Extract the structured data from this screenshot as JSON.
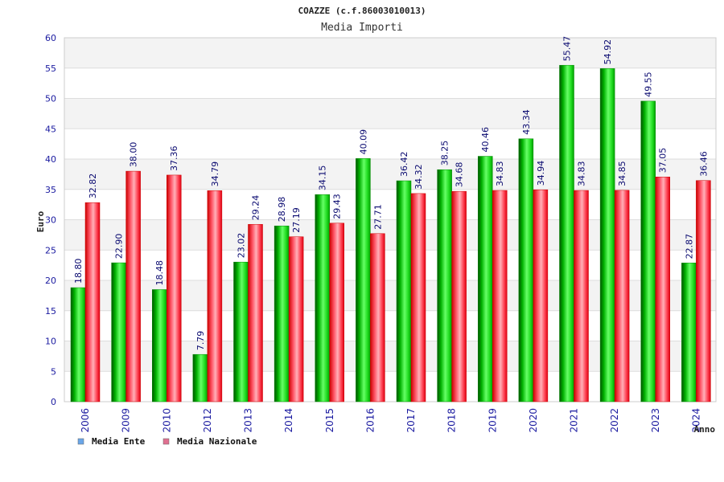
{
  "chart_data": {
    "type": "bar",
    "title": "COAZZE (c.f.86003010013)",
    "subtitle": "Media Importi",
    "xlabel": "Anno",
    "ylabel": "Euro",
    "ylim": [
      0,
      60
    ],
    "yticks": [
      0,
      5,
      10,
      15,
      20,
      25,
      30,
      35,
      40,
      45,
      50,
      55,
      60
    ],
    "grid": true,
    "legend_position": "bottom-left",
    "categories": [
      "2006",
      "2009",
      "2010",
      "2012",
      "2013",
      "2014",
      "2015",
      "2016",
      "2017",
      "2018",
      "2019",
      "2020",
      "2021",
      "2022",
      "2023",
      "2024"
    ],
    "series": [
      {
        "name": "Media Ente",
        "legend_color": "#6aa6e8",
        "bar_color": "#11bb11",
        "values": [
          18.8,
          22.9,
          18.48,
          7.79,
          23.02,
          28.98,
          34.15,
          40.09,
          36.42,
          38.25,
          40.46,
          43.34,
          55.47,
          54.92,
          49.55,
          22.87
        ],
        "labels": [
          "18.80",
          "22.90",
          "18.48",
          "7.79",
          "23.02",
          "28.98",
          "34.15",
          "40.09",
          "36.42",
          "38.25",
          "40.46",
          "43.34",
          "55.47",
          "54.92",
          "49.55",
          "22.87"
        ]
      },
      {
        "name": "Media Nazionale",
        "legend_color": "#e07090",
        "bar_color": "#ee2233",
        "values": [
          32.82,
          38.0,
          37.36,
          34.79,
          29.24,
          27.19,
          29.43,
          27.71,
          34.32,
          34.68,
          34.83,
          34.94,
          34.83,
          34.85,
          37.05,
          36.46
        ],
        "labels": [
          "32.82",
          "38.00",
          "37.36",
          "34.79",
          "29.24",
          "27.19",
          "29.43",
          "27.71",
          "34.32",
          "34.68",
          "34.83",
          "34.94",
          "34.83",
          "34.85",
          "37.05",
          "36.46"
        ]
      }
    ]
  }
}
